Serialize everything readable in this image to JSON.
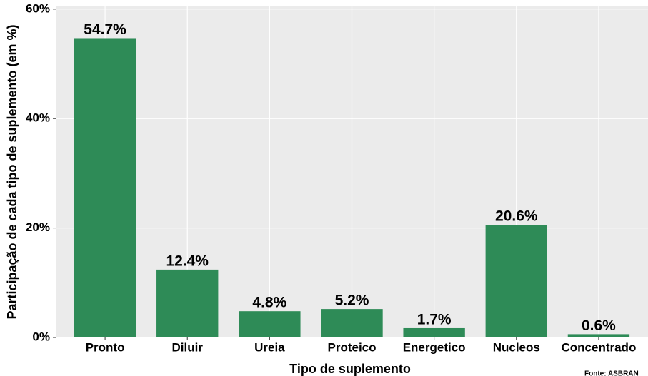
{
  "chart_data": {
    "type": "bar",
    "x_label": "Tipo de suplemento",
    "y_label": "Participação de cada tipo de suplemento (em %)",
    "caption": "Fonte: ASBRAN",
    "categories": [
      "Pronto",
      "Diluir",
      "Ureia",
      "Proteico",
      "Energetico",
      "Nucleos",
      "Concentrado"
    ],
    "values": [
      54.7,
      12.4,
      4.8,
      5.2,
      1.7,
      20.6,
      0.6
    ],
    "value_labels": [
      "54.7%",
      "12.4%",
      "4.8%",
      "5.2%",
      "1.7%",
      "20.6%",
      "0.6%"
    ],
    "color": "#2e8b57",
    "ylim": [
      0,
      60.5
    ],
    "yticks": [
      {
        "value": 0,
        "label": "0%"
      },
      {
        "value": 20,
        "label": "20%"
      },
      {
        "value": 40,
        "label": "40%"
      },
      {
        "value": 60,
        "label": "60%"
      }
    ],
    "grid": true
  }
}
